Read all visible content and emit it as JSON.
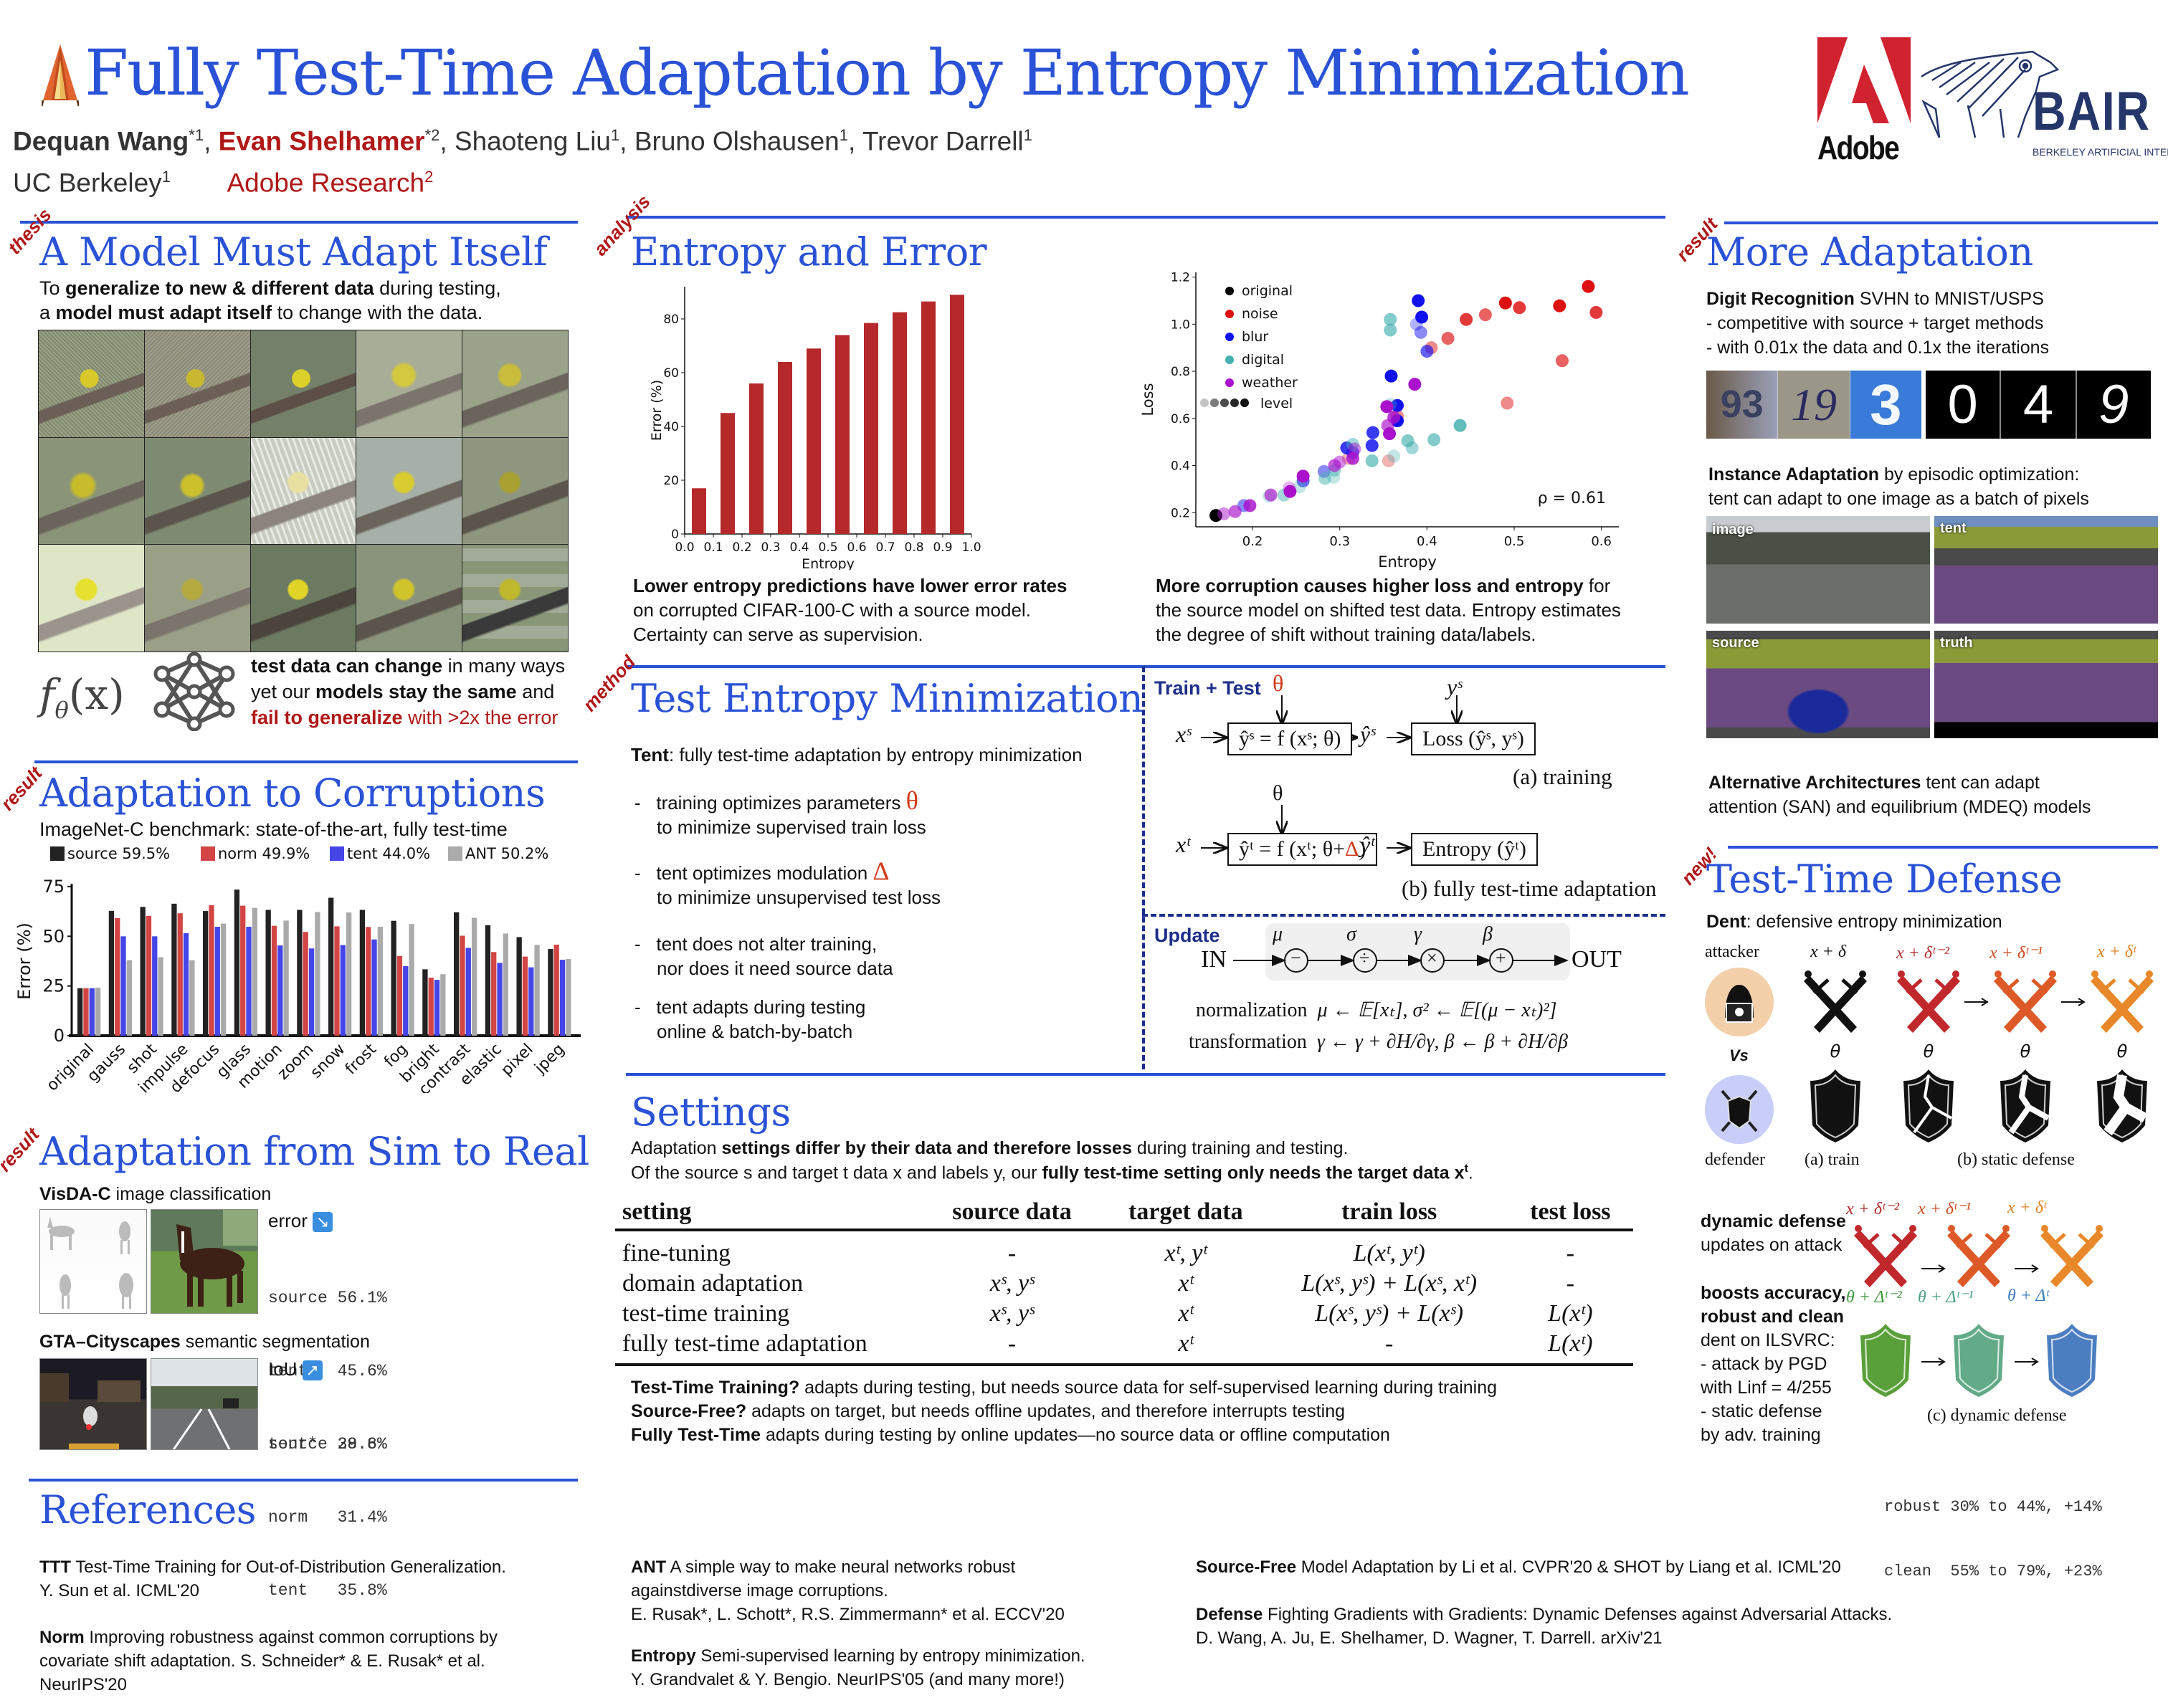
{
  "header": {
    "title": "Fully Test-Time Adaptation by Entropy Minimization",
    "authors": [
      {
        "name": "Dequan Wang",
        "mark": "*1",
        "style": "bold"
      },
      {
        "name": "Evan Shelhamer",
        "mark": "*2",
        "style": "bold-red"
      },
      {
        "name": "Shaoteng Liu",
        "mark": "1",
        "style": "plain"
      },
      {
        "name": "Bruno Olshausen",
        "mark": "1",
        "style": "plain"
      },
      {
        "name": "Trevor Darrell",
        "mark": "1",
        "style": "plain"
      }
    ],
    "affiliations": [
      {
        "name": "UC Berkeley",
        "mark": "1"
      },
      {
        "name": "Adobe Research",
        "mark": "2"
      }
    ],
    "logos": {
      "adobe": "Adobe",
      "bair": "BAIR",
      "bair_sub": "BERKELEY ARTIFICIAL INTELLIGENCE RESEARCH"
    },
    "icon": "tent-icon"
  },
  "colors": {
    "accent": "#2a52d6",
    "tag": "#b01818",
    "bar_red": "#b5292b"
  },
  "thesis": {
    "tag": "thesis",
    "title": "A Model Must Adapt Itself",
    "line1": {
      "pre": "To ",
      "bold": "generalize to new & different data",
      "post": " during testing,"
    },
    "line2": {
      "pre": "a ",
      "bold": "model must adapt itself",
      "post": " to change with the data."
    },
    "formula": "f",
    "formula_sub": "θ",
    "formula_arg": "(x)",
    "note1": {
      "bold": "test data can change",
      "post": " in many ways"
    },
    "note2": {
      "pre": "yet our ",
      "bold": "models stay the same",
      "post": " and"
    },
    "note3": {
      "bold": "fail to generalize",
      "post": " with >2x the error"
    }
  },
  "corruptions": {
    "tag": "result",
    "title": "Adaptation to Corruptions",
    "subtitle": "ImageNet-C benchmark: state-of-the-art, fully test-time"
  },
  "sim2real": {
    "tag": "result",
    "title": "Adaptation from Sim to Real",
    "visda_bold": "VisDA-C",
    "visda_rest": " image classification",
    "error_label": "error",
    "error_rows": [
      "source 56.1%",
      "tent   45.6%",
      "tent*  39.6%"
    ],
    "gta_bold": "GTA–Cityscapes",
    "gta_rest": " semantic segmentation",
    "iou_label": "IoU",
    "iou_rows": [
      "source 28.8%",
      "norm   31.4%",
      "tent   35.8%"
    ]
  },
  "analysis": {
    "tag": "analysis",
    "title": "Entropy and Error",
    "left_bold": "Lower entropy predictions have lower error rates",
    "left_l2": "on corrupted CIFAR-100-C with a source model.",
    "left_l3": "Certainty can serve as supervision.",
    "right_bold": "More corruption causes higher loss and entropy",
    "right_l1_post": " for",
    "right_l2": "the source model on shifted test data. Entropy estimates",
    "right_l3": "the degree of shift without training data/labels."
  },
  "method": {
    "tag": "method",
    "title": "Test Entropy Minimization",
    "intro_bold": "Tent",
    "intro_rest": ": fully test-time adaptation by entropy minimization",
    "bullets": [
      {
        "l1": "training optimizes parameters",
        "sym": "θ",
        "l2": "to minimize supervised train loss"
      },
      {
        "l1": "tent optimizes modulation",
        "sym": "Δ",
        "l2": "to minimize unsupervised test loss"
      },
      {
        "l1": "tent does not alter training,",
        "sym": "",
        "l2": "nor does it need source data"
      },
      {
        "l1": "tent adapts during testing",
        "sym": "",
        "l2": "online & batch-by-batch"
      }
    ],
    "diagram": {
      "train_test_label": "Train + Test",
      "theta": "θ",
      "ys": "yˢ",
      "xs": "xˢ",
      "box_a": "ŷˢ = f (xˢ; θ)",
      "yhat_s": "ŷˢ",
      "loss_box": "Loss (ŷˢ, yˢ)",
      "cap_a": "(a) training",
      "xt": "xᵗ",
      "box_b_pre": "ŷᵗ = f (xᵗ; θ+",
      "box_b_delta": "Δ",
      "box_b_post": ")",
      "yhat_t": "ŷᵗ",
      "entropy_box": "Entropy (ŷᵗ)",
      "cap_b": "(b) fully test-time adaptation",
      "update_label": "Update",
      "in": "IN",
      "out": "OUT",
      "ops": [
        {
          "param": "μ",
          "op": "−"
        },
        {
          "param": "σ",
          "op": "÷"
        },
        {
          "param": "γ",
          "op": "×"
        },
        {
          "param": "β",
          "op": "+"
        }
      ],
      "norm_label": "normalization",
      "norm_eq": "μ ← 𝔼[xₜ], σ² ← 𝔼[(μ − xₜ)²]",
      "trans_label": "transformation",
      "trans_eq": "γ ← γ + ∂H/∂γ, β ← β + ∂H/∂β"
    }
  },
  "settings": {
    "title": "Settings",
    "line1": {
      "pre": "Adaptation ",
      "bold": "settings differ by their data and therefore losses",
      "post": " during training and testing."
    },
    "line2": {
      "pre": "Of the source s and target t data x and labels y, our ",
      "bold": "fully test-time setting only needs the target data x",
      "sup": "t",
      "post": "."
    },
    "headers": [
      "setting",
      "source data",
      "target data",
      "train loss",
      "test loss"
    ],
    "rows": [
      [
        "fine-tuning",
        "-",
        "xᵗ, yᵗ",
        "L(xᵗ, yᵗ)",
        "-"
      ],
      [
        "domain adaptation",
        "xˢ, yˢ",
        "xᵗ",
        "L(xˢ, yˢ) + L(xˢ, xᵗ)",
        "-"
      ],
      [
        "test-time training",
        "xˢ, yˢ",
        "xᵗ",
        "L(xˢ, yˢ) + L(xˢ)",
        "L(xᵗ)"
      ],
      [
        "fully test-time adaptation",
        "-",
        "xᵗ",
        "-",
        "L(xᵗ)"
      ]
    ],
    "notes": [
      {
        "bold": "Test-Time Training?",
        "rest": " adapts during testing, but needs source data for self-supervised learning during training"
      },
      {
        "bold": "Source-Free?",
        "rest": " adapts on target, but needs offline updates, and therefore interrupts testing"
      },
      {
        "bold": "Fully Test-Time",
        "rest": " adapts during testing by online updates—no source data or offline computation"
      }
    ]
  },
  "more": {
    "tag": "result",
    "title": "More Adaptation",
    "digit_bold": "Digit Recognition",
    "digit_rest": " SVHN to MNIST/USPS",
    "digit_l2": "- competitive with source + target methods",
    "digit_l3": "- with 0.01x the data and 0.1x the iterations",
    "svhn_digits": [
      "93",
      "19",
      "3"
    ],
    "mnist_digits": [
      "0",
      "4",
      "9"
    ],
    "inst_bold": "Instance Adaptation",
    "inst_rest": " by episodic optimization:",
    "inst_l2": "tent can adapt to one image as a batch of pixels",
    "seg_labels": [
      "image",
      "tent",
      "source",
      "truth"
    ],
    "alt_bold": "Alternative Architectures",
    "alt_rest": " tent can adapt",
    "alt_l2": "attention (SAN) and equilibrium (MDEQ) models"
  },
  "defense": {
    "tag": "new!",
    "title": "Test-Time Defense",
    "dent_bold": "Dent",
    "dent_rest": ": defensive entropy minimization",
    "attacker": "attacker",
    "vs": "Vs",
    "defender": "defender",
    "attack_labels": [
      "x + δ",
      "x + δᵗ⁻²",
      "x + δᵗ⁻¹",
      "x + δᵗ"
    ],
    "theta": "θ",
    "cap_train": "(a) train",
    "cap_static": "(b) static defense",
    "dyn_bold": "dynamic defense",
    "dyn_rest": "updates on attack",
    "boost_b1": "boosts accuracy,",
    "boost_b2": "robust and clean",
    "boost_lines": [
      "dent on ILSVRC:",
      "- attack by PGD",
      "with Linf = 4/255",
      "- static defense",
      "by adv. training"
    ],
    "dyn_attack_labels": [
      "x + δᵗ⁻²",
      "x + δᵗ⁻¹",
      "x + δᵗ"
    ],
    "dyn_shield_labels": [
      "θ + Δᵗ⁻²",
      "θ + Δᵗ⁻¹",
      "θ + Δᵗ"
    ],
    "cap_dynamic": "(c) dynamic defense",
    "result_rows": [
      "robust 30% to 44%, +14%",
      "clean  55% to 79%, +23%"
    ]
  },
  "references": {
    "title": "References",
    "items": [
      {
        "bold": "TTT",
        "l1": " Test-Time Training for Out-of-Distribution Generalization.",
        "l2": "Y. Sun et al. ICML'20",
        "l3": ""
      },
      {
        "bold": "Norm",
        "l1": " Improving robustness against common corruptions by",
        "l2": "covariate shift adaptation. S. Schneider* & E. Rusak* et al.",
        "l3": "NeurIPS'20"
      },
      {
        "bold": "ANT",
        "l1": " A simple way to make neural networks robust",
        "l2": "againstdiverse image corruptions.",
        "l3": "E. Rusak*, L. Schott*, R.S. Zimmermann* et al. ECCV'20"
      },
      {
        "bold": "Entropy",
        "l1": " Semi-supervised learning by entropy minimization.",
        "l2": "Y. Grandvalet & Y. Bengio. NeurIPS'05 (and many more!)",
        "l3": ""
      },
      {
        "bold": "Source-Free",
        "l1": " Model Adaptation by Li et al. CVPR'20 &  SHOT by Liang et al. ICML'20",
        "l2": "",
        "l3": ""
      },
      {
        "bold": "Defense",
        "l1": " Fighting Gradients with Gradients: Dynamic Defenses against Adversarial Attacks.",
        "l2": "D. Wang, A. Ju, E. Shelhamer, D. Wagner, T. Darrell. arXiv'21",
        "l3": ""
      }
    ]
  },
  "chart_data": [
    {
      "type": "bar",
      "title": "",
      "categories": [
        "original",
        "gauss",
        "shot",
        "impulse",
        "defocus",
        "glass",
        "motion",
        "zoom",
        "snow",
        "frost",
        "fog",
        "bright",
        "contrast",
        "elastic",
        "pixel",
        "jpeg"
      ],
      "series": [
        {
          "name": "source 59.5%",
          "color": "#222222",
          "values": [
            23.9,
            62.8,
            64.8,
            66.4,
            62.7,
            73.5,
            63.3,
            63.3,
            69.4,
            63.3,
            57.8,
            33.4,
            62.1,
            55.6,
            49.6,
            43.6
          ]
        },
        {
          "name": "norm 49.9%",
          "color": "#d34545",
          "values": [
            23.9,
            59.2,
            60.3,
            61.6,
            65.7,
            65.4,
            55.3,
            52.2,
            55.0,
            54.7,
            40.1,
            29.2,
            50.3,
            42.1,
            39.8,
            45.8
          ]
        },
        {
          "name": "tent 44.0%",
          "color": "#4545e8",
          "values": [
            23.9,
            50.0,
            50.0,
            51.6,
            54.8,
            54.8,
            45.4,
            43.9,
            45.6,
            48.4,
            35.0,
            28.1,
            44.2,
            36.6,
            34.4,
            38.2
          ]
        },
        {
          "name": "ANT 50.2%",
          "color": "#aaaaaa",
          "values": [
            24.2,
            38.0,
            39.5,
            38.0,
            56.4,
            64.3,
            57.9,
            62.2,
            62.0,
            54.8,
            56.2,
            30.9,
            59.3,
            51.4,
            45.7,
            38.6
          ]
        }
      ],
      "xlabel": "",
      "ylabel": "Error (%)",
      "ylim": [
        0,
        75
      ],
      "yticks": [
        0,
        25,
        50,
        75
      ],
      "legend": "top"
    },
    {
      "type": "bar",
      "title": "",
      "categories": [
        "0.05",
        "0.15",
        "0.25",
        "0.35",
        "0.45",
        "0.55",
        "0.65",
        "0.75",
        "0.85",
        "0.95"
      ],
      "values": [
        17,
        45,
        56,
        64,
        69,
        74,
        78.5,
        82.5,
        86.5,
        89
      ],
      "xlabel": "Entropy",
      "ylabel": "Error (%)",
      "xlim": [
        0.0,
        1.0
      ],
      "xticks": [
        "0.0",
        "0.1",
        "0.2",
        "0.3",
        "0.4",
        "0.5",
        "0.6",
        "0.7",
        "0.8",
        "0.9",
        "1.0"
      ],
      "ylim": [
        0,
        92
      ],
      "yticks": [
        0,
        20,
        40,
        60,
        80
      ],
      "color": "#b5292b"
    },
    {
      "type": "scatter",
      "title": "",
      "xlabel": "Entropy",
      "ylabel": "Loss",
      "xlim": [
        0.135,
        0.62
      ],
      "ylim": [
        0.14,
        1.22
      ],
      "xticks": [
        0.2,
        0.3,
        0.4,
        0.5,
        0.6
      ],
      "yticks": [
        0.2,
        0.4,
        0.6,
        0.8,
        1.0,
        1.2
      ],
      "annotation": "ρ = 0.61",
      "legend": "top-left",
      "legend_level": "level",
      "series": [
        {
          "name": "original",
          "color": "#000000",
          "points": [
            [
              0.158,
              0.188,
              5
            ]
          ]
        },
        {
          "name": "noise",
          "color": "#dd1111",
          "points": [
            [
              0.585,
              1.16,
              5
            ],
            [
              0.49,
              1.09,
              5
            ],
            [
              0.552,
              1.078,
              5
            ],
            [
              0.506,
              1.07,
              4
            ],
            [
              0.594,
              1.05,
              4
            ],
            [
              0.445,
              1.02,
              4
            ],
            [
              0.467,
              1.04,
              3
            ],
            [
              0.424,
              0.94,
              3
            ],
            [
              0.405,
              0.9,
              2
            ],
            [
              0.555,
              0.845,
              3
            ],
            [
              0.492,
              0.665,
              2
            ],
            [
              0.366,
              0.61,
              2
            ],
            [
              0.356,
              0.42,
              1
            ],
            [
              0.31,
              0.43,
              1
            ]
          ]
        },
        {
          "name": "blur",
          "color": "#1111ee",
          "points": [
            [
              0.39,
              1.1,
              5
            ],
            [
              0.394,
              1.03,
              5
            ],
            [
              0.388,
              1.0,
              1
            ],
            [
              0.393,
              0.965,
              2
            ],
            [
              0.4,
              0.885,
              3
            ],
            [
              0.359,
              0.78,
              5
            ],
            [
              0.366,
              0.655,
              5
            ],
            [
              0.366,
              0.59,
              5
            ],
            [
              0.338,
              0.54,
              4
            ],
            [
              0.337,
              0.485,
              4
            ],
            [
              0.308,
              0.475,
              4
            ],
            [
              0.315,
              0.455,
              3
            ],
            [
              0.282,
              0.375,
              2
            ],
            [
              0.258,
              0.335,
              3
            ],
            [
              0.19,
              0.23,
              2
            ]
          ]
        },
        {
          "name": "digital",
          "color": "#44b0b0",
          "points": [
            [
              0.358,
              1.02,
              3
            ],
            [
              0.358,
              0.975,
              3
            ],
            [
              0.438,
              0.57,
              4
            ],
            [
              0.378,
              0.505,
              3
            ],
            [
              0.408,
              0.51,
              3
            ],
            [
              0.383,
              0.475,
              2
            ],
            [
              0.337,
              0.42,
              3
            ],
            [
              0.362,
              0.44,
              1
            ],
            [
              0.315,
              0.49,
              2
            ],
            [
              0.294,
              0.38,
              2
            ],
            [
              0.283,
              0.345,
              2
            ],
            [
              0.293,
              0.35,
              1
            ],
            [
              0.254,
              0.31,
              1
            ],
            [
              0.236,
              0.275,
              2
            ],
            [
              0.219,
              0.27,
              1
            ],
            [
              0.358,
              0.66,
              1
            ]
          ]
        },
        {
          "name": "weather",
          "color": "#aa11cc",
          "points": [
            [
              0.386,
              0.745,
              5
            ],
            [
              0.354,
              0.65,
              5
            ],
            [
              0.362,
              0.605,
              4
            ],
            [
              0.355,
              0.57,
              3
            ],
            [
              0.357,
              0.535,
              5
            ],
            [
              0.315,
              0.43,
              4
            ],
            [
              0.317,
              0.47,
              2
            ],
            [
              0.294,
              0.4,
              3
            ],
            [
              0.3,
              0.415,
              2
            ],
            [
              0.258,
              0.355,
              5
            ],
            [
              0.243,
              0.29,
              5
            ],
            [
              0.242,
              0.305,
              1
            ],
            [
              0.221,
              0.275,
              3
            ],
            [
              0.197,
              0.23,
              4
            ],
            [
              0.18,
              0.205,
              3
            ],
            [
              0.167,
              0.195,
              2
            ]
          ]
        }
      ]
    }
  ]
}
